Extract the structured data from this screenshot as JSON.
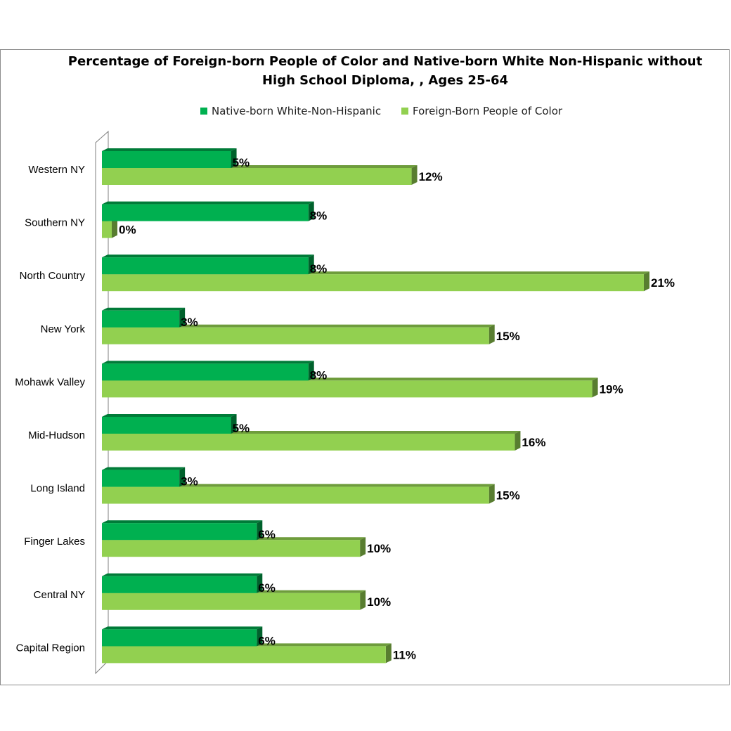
{
  "chart_data": {
    "type": "bar",
    "orientation": "horizontal",
    "title_lines": [
      "Percentage of Foreign-born People of Color and Native-born White Non-Hispanic without",
      "High School Diploma, , Ages 25-64"
    ],
    "legend_position": "top",
    "categories": [
      "Western NY",
      "Southern NY",
      "North Country",
      "New York ",
      "Mohawk Valley",
      "Mid-Hudson",
      "Long Island",
      "Finger Lakes",
      "Central NY",
      "Capital Region"
    ],
    "series": [
      {
        "name": "Native-born White-Non-Hispanic",
        "color": "#00b050",
        "values": [
          5,
          8,
          8,
          3,
          8,
          5,
          3,
          6,
          6,
          6
        ],
        "labels": [
          "5%",
          "8%",
          "8%",
          "3%",
          "8%",
          "5%",
          "3%",
          "6%",
          "6%",
          "6%"
        ]
      },
      {
        "name": "Foreign-Born People of Color",
        "color": "#92d050",
        "values": [
          12,
          0,
          21,
          15,
          19,
          16,
          15,
          10,
          10,
          11
        ],
        "labels": [
          "12%",
          "0%",
          "21%",
          "15%",
          "19%",
          "16%",
          "15%",
          "10%",
          "10%",
          "11%"
        ]
      }
    ],
    "xlim": [
      0,
      21
    ],
    "grid": false,
    "style": "3d-bar"
  }
}
